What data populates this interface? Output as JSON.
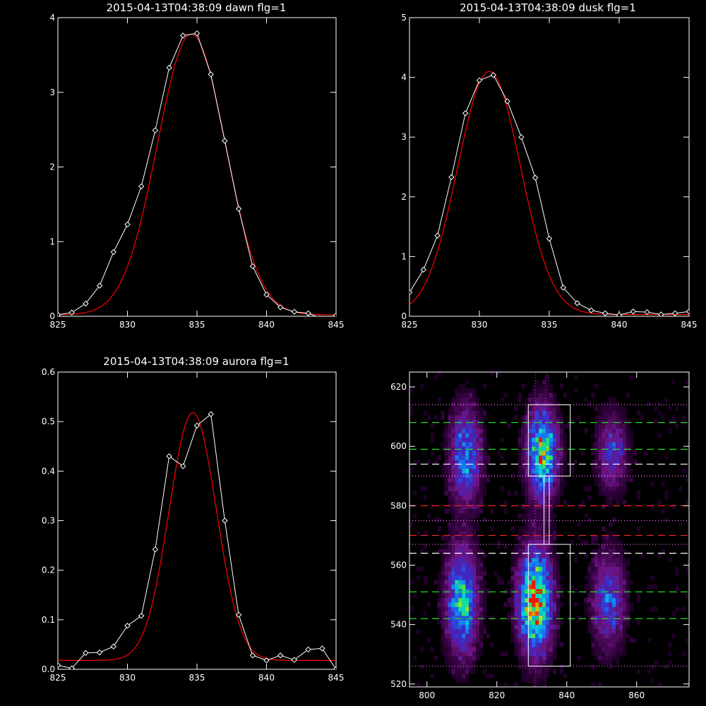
{
  "chart_data": [
    {
      "type": "line",
      "title": "2015-04-13T04:38:09 dawn flg=1",
      "xlim": [
        825,
        845
      ],
      "ylim": [
        0,
        4
      ],
      "xticks": [
        825,
        830,
        835,
        840,
        845
      ],
      "yticks": [
        0,
        1,
        2,
        3,
        4
      ],
      "grid": false,
      "series": [
        {
          "style": "data",
          "color": "#ffffff",
          "marker": "diamond",
          "x": [
            825,
            826,
            827,
            828,
            829,
            830,
            831,
            832,
            833,
            834,
            835,
            836,
            837,
            838,
            839,
            840,
            841,
            842,
            843,
            844,
            845
          ],
          "y": [
            0.02,
            0.05,
            0.17,
            0.41,
            0.86,
            1.23,
            1.74,
            2.49,
            3.33,
            3.76,
            3.79,
            3.24,
            2.35,
            1.44,
            0.67,
            0.29,
            0.12,
            0.06,
            0.04,
            -0.03,
            0.01
          ]
        },
        {
          "style": "fit",
          "color": "#ff0000",
          "gaussian": {
            "amp": 3.76,
            "center": 834.6,
            "sigma": 2.45,
            "offset": 0.02
          }
        }
      ]
    },
    {
      "type": "line",
      "title": "2015-04-13T04:38:09 dusk flg=1",
      "xlim": [
        825,
        845
      ],
      "ylim": [
        0,
        5
      ],
      "xticks": [
        825,
        830,
        835,
        840,
        845
      ],
      "yticks": [
        0,
        1,
        2,
        3,
        4,
        5
      ],
      "grid": false,
      "series": [
        {
          "style": "data",
          "color": "#ffffff",
          "marker": "diamond",
          "x": [
            825,
            826,
            827,
            828,
            829,
            830,
            831,
            832,
            833,
            834,
            835,
            836,
            837,
            838,
            839,
            840,
            841,
            842,
            843,
            844,
            845
          ],
          "y": [
            0.4,
            0.78,
            1.35,
            2.33,
            3.4,
            3.95,
            4.04,
            3.6,
            3.0,
            2.32,
            1.3,
            0.48,
            0.22,
            0.1,
            0.05,
            0.02,
            0.08,
            0.07,
            0.03,
            0.05,
            0.08
          ]
        },
        {
          "style": "fit",
          "color": "#ff0000",
          "gaussian": {
            "amp": 4.07,
            "center": 830.7,
            "sigma": 2.25,
            "offset": 0.03
          }
        }
      ]
    },
    {
      "type": "line",
      "title": "2015-04-13T04:38:09 aurora flg=1",
      "xlim": [
        825,
        845
      ],
      "ylim": [
        0,
        0.6
      ],
      "xticks": [
        825,
        830,
        835,
        840,
        845
      ],
      "yticks": [
        0.0,
        0.1,
        0.2,
        0.3,
        0.4,
        0.5,
        0.6
      ],
      "grid": false,
      "series": [
        {
          "style": "data",
          "color": "#ffffff",
          "marker": "diamond",
          "x": [
            825,
            826,
            827,
            828,
            829,
            830,
            831,
            832,
            833,
            834,
            835,
            836,
            837,
            838,
            839,
            840,
            841,
            842,
            843,
            844,
            845
          ],
          "y": [
            0.008,
            0.002,
            0.033,
            0.034,
            0.046,
            0.088,
            0.108,
            0.242,
            0.43,
            0.41,
            0.492,
            0.515,
            0.3,
            0.11,
            0.028,
            0.018,
            0.028,
            0.019,
            0.04,
            0.042,
            0.0
          ]
        },
        {
          "style": "fit",
          "color": "#ff0000",
          "gaussian": {
            "amp": 0.5,
            "center": 834.7,
            "sigma": 1.7,
            "offset": 0.018
          }
        }
      ]
    },
    {
      "type": "heatmap",
      "xlim": [
        795,
        875
      ],
      "ylim": [
        519,
        625
      ],
      "xticks": [
        800,
        820,
        840,
        860
      ],
      "yticks": [
        520,
        540,
        560,
        580,
        600,
        620
      ],
      "colormap": "rainbow-on-black",
      "blobs": [
        {
          "x": 810,
          "y": 548,
          "sx": 3.0,
          "sy": 12,
          "peak": 0.72
        },
        {
          "x": 831,
          "y": 548,
          "sx": 3.2,
          "sy": 12,
          "peak": 0.95
        },
        {
          "x": 852,
          "y": 548,
          "sx": 3.2,
          "sy": 11,
          "peak": 0.45
        },
        {
          "x": 811,
          "y": 597,
          "sx": 3.0,
          "sy": 11,
          "peak": 0.55
        },
        {
          "x": 833,
          "y": 598,
          "sx": 3.0,
          "sy": 10,
          "peak": 0.82
        },
        {
          "x": 853,
          "y": 598,
          "sx": 3.0,
          "sy": 9,
          "peak": 0.38
        }
      ],
      "vlines": [
        {
          "x": 831,
          "style": "dotted",
          "color": "#ff00ff"
        },
        {
          "x": 834,
          "style": "dotted",
          "color": "#ff00ff"
        }
      ],
      "hlines": [
        {
          "y": 614,
          "style": "dotted",
          "color": "#ff77ff"
        },
        {
          "y": 608,
          "style": "dashed",
          "color": "#22dd22"
        },
        {
          "y": 599,
          "style": "dashed",
          "color": "#22dd22"
        },
        {
          "y": 594,
          "style": "dashed",
          "color": "#ffffff"
        },
        {
          "y": 590,
          "style": "dotted",
          "color": "#ff77ff"
        },
        {
          "y": 580,
          "style": "dashed",
          "color": "#ff2222"
        },
        {
          "y": 575,
          "style": "dotted",
          "color": "#ff77ff"
        },
        {
          "y": 570,
          "style": "dashed",
          "color": "#ff2222"
        },
        {
          "y": 567,
          "style": "dotted",
          "color": "#ff77ff"
        },
        {
          "y": 564,
          "style": "dashed",
          "color": "#ffffff"
        },
        {
          "y": 551,
          "style": "dashed",
          "color": "#22dd22"
        },
        {
          "y": 542,
          "style": "dashed",
          "color": "#22dd22"
        },
        {
          "y": 526,
          "style": "dotted",
          "color": "#ff77ff"
        }
      ],
      "boxes": [
        {
          "x0": 829,
          "x1": 841,
          "y0": 590,
          "y1": 614,
          "color": "#ffffff"
        },
        {
          "x0": 829,
          "x1": 841,
          "y0": 526,
          "y1": 567,
          "color": "#ffffff"
        },
        {
          "x0": 833.5,
          "x1": 835,
          "y0": 567,
          "y1": 590,
          "color": "#ffffff"
        }
      ]
    }
  ]
}
